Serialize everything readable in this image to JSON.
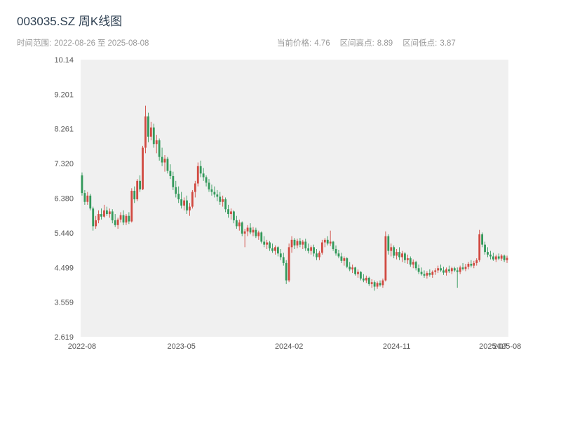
{
  "header": {
    "title": "003035.SZ 周K线图"
  },
  "time_range": {
    "label": "时间范围:",
    "start": "2022-08-26",
    "to": "至",
    "end": "2025-08-08"
  },
  "stats": [
    {
      "label": "当前价格:",
      "value": "4.76"
    },
    {
      "label": "区间高点:",
      "value": "8.89"
    },
    {
      "label": "区间低点:",
      "value": "3.87"
    }
  ],
  "chart_data": {
    "type": "candlestick",
    "title": "003035.SZ 周K线图",
    "interval": "weekly",
    "x_start": "2022-08-26",
    "x_end": "2025-08-08",
    "xlabel": "",
    "ylabel": "",
    "grid": false,
    "legend": "none",
    "plot_bg": "#f0f0f0",
    "up_color": "#d14a41",
    "down_color": "#33995b",
    "current_price": 4.76,
    "range_high": 8.89,
    "range_low": 3.87,
    "ylim": [
      2.619,
      10.14
    ],
    "y_ticks": [
      {
        "v": 2.619,
        "label": "2.619"
      },
      {
        "v": 3.559,
        "label": "3.559"
      },
      {
        "v": 4.499,
        "label": "4.499"
      },
      {
        "v": 5.44,
        "label": "5.440"
      },
      {
        "v": 6.38,
        "label": "6.380"
      },
      {
        "v": 7.32,
        "label": "7.320"
      },
      {
        "v": 8.261,
        "label": "8.261"
      },
      {
        "v": 9.201,
        "label": "9.201"
      },
      {
        "v": 10.14,
        "label": "10.14"
      }
    ],
    "x_ticks": [
      {
        "label": "2022-08",
        "index": 0
      },
      {
        "label": "2023-05",
        "index": 36
      },
      {
        "label": "2024-02",
        "index": 75
      },
      {
        "label": "2024-11",
        "index": 114
      },
      {
        "label": "2025-07",
        "index": 149
      },
      {
        "label": "2025-08",
        "index": 154
      }
    ],
    "candles": [
      [
        7.0,
        7.08,
        6.45,
        6.52
      ],
      [
        6.52,
        6.6,
        6.2,
        6.28
      ],
      [
        6.28,
        6.55,
        6.2,
        6.45
      ],
      [
        6.45,
        6.5,
        6.05,
        6.1
      ],
      [
        6.1,
        6.15,
        5.5,
        5.62
      ],
      [
        5.62,
        5.9,
        5.55,
        5.78
      ],
      [
        5.78,
        6.05,
        5.7,
        5.95
      ],
      [
        5.95,
        6.1,
        5.8,
        5.88
      ],
      [
        5.88,
        6.2,
        5.85,
        6.05
      ],
      [
        6.05,
        6.15,
        5.9,
        5.95
      ],
      [
        5.95,
        6.1,
        5.85,
        6.02
      ],
      [
        6.02,
        6.08,
        5.7,
        5.78
      ],
      [
        5.78,
        5.95,
        5.6,
        5.65
      ],
      [
        5.65,
        5.85,
        5.55,
        5.8
      ],
      [
        5.8,
        6.0,
        5.72,
        5.92
      ],
      [
        5.92,
        6.05,
        5.65,
        5.72
      ],
      [
        5.72,
        5.95,
        5.65,
        5.9
      ],
      [
        5.9,
        6.0,
        5.68,
        5.75
      ],
      [
        5.75,
        6.65,
        5.72,
        6.58
      ],
      [
        6.58,
        6.7,
        6.25,
        6.35
      ],
      [
        6.35,
        6.9,
        6.3,
        6.85
      ],
      [
        6.85,
        7.0,
        6.55,
        6.62
      ],
      [
        6.62,
        7.8,
        6.6,
        7.75
      ],
      [
        7.75,
        8.89,
        7.6,
        8.6
      ],
      [
        8.6,
        8.7,
        7.9,
        8.05
      ],
      [
        8.05,
        8.45,
        7.95,
        8.3
      ],
      [
        8.3,
        8.4,
        7.75,
        7.85
      ],
      [
        7.85,
        8.1,
        7.6,
        7.95
      ],
      [
        7.95,
        8.0,
        7.4,
        7.5
      ],
      [
        7.5,
        7.75,
        7.25,
        7.35
      ],
      [
        7.35,
        7.55,
        7.1,
        7.45
      ],
      [
        7.45,
        7.5,
        7.05,
        7.12
      ],
      [
        7.12,
        7.3,
        6.9,
        6.98
      ],
      [
        6.98,
        7.1,
        6.6,
        6.68
      ],
      [
        6.68,
        6.85,
        6.4,
        6.5
      ],
      [
        6.5,
        6.7,
        6.25,
        6.35
      ],
      [
        6.35,
        6.55,
        6.1,
        6.18
      ],
      [
        6.18,
        6.4,
        6.05,
        6.32
      ],
      [
        6.32,
        6.45,
        5.95,
        6.05
      ],
      [
        6.05,
        6.25,
        5.9,
        6.15
      ],
      [
        6.15,
        6.6,
        6.1,
        6.55
      ],
      [
        6.55,
        6.85,
        6.4,
        6.78
      ],
      [
        6.78,
        7.35,
        6.7,
        7.25
      ],
      [
        7.25,
        7.4,
        6.95,
        7.05
      ],
      [
        7.05,
        7.2,
        6.85,
        6.95
      ],
      [
        6.95,
        7.0,
        6.7,
        6.8
      ],
      [
        6.8,
        6.9,
        6.55,
        6.62
      ],
      [
        6.62,
        6.75,
        6.45,
        6.55
      ],
      [
        6.55,
        6.7,
        6.4,
        6.48
      ],
      [
        6.48,
        6.6,
        6.3,
        6.42
      ],
      [
        6.42,
        6.55,
        6.2,
        6.28
      ],
      [
        6.28,
        6.45,
        6.15,
        6.35
      ],
      [
        6.35,
        6.4,
        6.0,
        6.08
      ],
      [
        6.08,
        6.2,
        5.85,
        5.95
      ],
      [
        5.95,
        6.1,
        5.8,
        6.02
      ],
      [
        6.02,
        6.05,
        5.7,
        5.78
      ],
      [
        5.78,
        5.9,
        5.55,
        5.62
      ],
      [
        5.62,
        5.8,
        5.5,
        5.72
      ],
      [
        5.72,
        5.75,
        5.35,
        5.42
      ],
      [
        5.42,
        5.55,
        5.05,
        5.48
      ],
      [
        5.48,
        5.65,
        5.35,
        5.58
      ],
      [
        5.58,
        5.7,
        5.4,
        5.45
      ],
      [
        5.45,
        5.6,
        5.35,
        5.52
      ],
      [
        5.52,
        5.58,
        5.3,
        5.35
      ],
      [
        5.35,
        5.5,
        5.25,
        5.45
      ],
      [
        5.45,
        5.48,
        5.15,
        5.2
      ],
      [
        5.2,
        5.35,
        5.05,
        5.12
      ],
      [
        5.12,
        5.25,
        5.0,
        5.18
      ],
      [
        5.18,
        5.22,
        4.95,
        5.02
      ],
      [
        5.02,
        5.15,
        4.9,
        4.95
      ],
      [
        4.95,
        5.1,
        4.85,
        5.05
      ],
      [
        5.05,
        5.08,
        4.8,
        4.88
      ],
      [
        4.88,
        5.0,
        4.7,
        4.78
      ],
      [
        4.78,
        4.9,
        4.55,
        4.62
      ],
      [
        4.62,
        4.7,
        4.05,
        4.15
      ],
      [
        4.15,
        5.15,
        4.1,
        5.05
      ],
      [
        5.05,
        5.35,
        4.9,
        5.25
      ],
      [
        5.25,
        5.3,
        5.0,
        5.1
      ],
      [
        5.1,
        5.28,
        5.02,
        5.22
      ],
      [
        5.22,
        5.3,
        5.05,
        5.12
      ],
      [
        5.12,
        5.25,
        5.0,
        5.2
      ],
      [
        5.2,
        5.28,
        4.95,
        5.02
      ],
      [
        5.02,
        5.15,
        4.88,
        4.95
      ],
      [
        4.95,
        5.1,
        4.85,
        5.05
      ],
      [
        5.05,
        5.12,
        4.8,
        4.88
      ],
      [
        4.88,
        5.0,
        4.7,
        4.78
      ],
      [
        4.78,
        4.95,
        4.7,
        4.9
      ],
      [
        4.9,
        5.25,
        4.85,
        5.18
      ],
      [
        5.18,
        5.3,
        5.05,
        5.25
      ],
      [
        5.25,
        5.35,
        5.1,
        5.15
      ],
      [
        5.15,
        5.5,
        5.08,
        5.2
      ],
      [
        5.2,
        5.22,
        4.95,
        5.0
      ],
      [
        5.0,
        5.1,
        4.82,
        4.88
      ],
      [
        4.88,
        4.98,
        4.75,
        4.8
      ],
      [
        4.8,
        4.9,
        4.62,
        4.68
      ],
      [
        4.68,
        4.8,
        4.55,
        4.75
      ],
      [
        4.75,
        4.78,
        4.48,
        4.52
      ],
      [
        4.52,
        4.65,
        4.4,
        4.45
      ],
      [
        4.45,
        4.58,
        4.35,
        4.5
      ],
      [
        4.5,
        4.52,
        4.28,
        4.32
      ],
      [
        4.32,
        4.45,
        4.22,
        4.38
      ],
      [
        4.38,
        4.4,
        4.15,
        4.2
      ],
      [
        4.2,
        4.32,
        4.1,
        4.15
      ],
      [
        4.15,
        4.28,
        4.08,
        4.22
      ],
      [
        4.22,
        4.25,
        4.0,
        4.05
      ],
      [
        4.05,
        4.18,
        3.95,
        4.1
      ],
      [
        4.1,
        4.15,
        3.87,
        3.98
      ],
      [
        3.98,
        4.12,
        3.92,
        4.08
      ],
      [
        4.08,
        4.15,
        3.98,
        4.02
      ],
      [
        4.02,
        4.2,
        3.95,
        4.15
      ],
      [
        4.15,
        5.48,
        4.12,
        5.35
      ],
      [
        5.35,
        5.4,
        4.85,
        4.95
      ],
      [
        4.95,
        5.15,
        4.8,
        5.05
      ],
      [
        5.05,
        5.1,
        4.75,
        4.82
      ],
      [
        4.82,
        5.0,
        4.72,
        4.92
      ],
      [
        4.92,
        5.05,
        4.7,
        4.78
      ],
      [
        4.78,
        4.95,
        4.65,
        4.88
      ],
      [
        4.88,
        4.92,
        4.62,
        4.7
      ],
      [
        4.7,
        4.85,
        4.6,
        4.75
      ],
      [
        4.75,
        4.8,
        4.52,
        4.58
      ],
      [
        4.58,
        4.72,
        4.48,
        4.65
      ],
      [
        4.65,
        4.68,
        4.42,
        4.48
      ],
      [
        4.48,
        4.58,
        4.32,
        4.38
      ],
      [
        4.38,
        4.5,
        4.28,
        4.32
      ],
      [
        4.32,
        4.42,
        4.22,
        4.28
      ],
      [
        4.28,
        4.4,
        4.2,
        4.35
      ],
      [
        4.35,
        4.45,
        4.25,
        4.3
      ],
      [
        4.3,
        4.42,
        4.22,
        4.38
      ],
      [
        4.38,
        4.48,
        4.3,
        4.42
      ],
      [
        4.42,
        4.55,
        4.35,
        4.48
      ],
      [
        4.48,
        4.58,
        4.38,
        4.42
      ],
      [
        4.42,
        4.52,
        4.3,
        4.36
      ],
      [
        4.36,
        4.5,
        4.28,
        4.45
      ],
      [
        4.45,
        4.55,
        4.35,
        4.4
      ],
      [
        4.4,
        4.52,
        4.32,
        4.48
      ],
      [
        4.48,
        4.52,
        4.38,
        4.42
      ],
      [
        4.42,
        4.5,
        3.95,
        4.38
      ],
      [
        4.38,
        4.55,
        4.32,
        4.5
      ],
      [
        4.5,
        4.62,
        4.42,
        4.46
      ],
      [
        4.46,
        4.6,
        4.4,
        4.52
      ],
      [
        4.52,
        4.65,
        4.45,
        4.6
      ],
      [
        4.6,
        4.7,
        4.5,
        4.55
      ],
      [
        4.55,
        4.68,
        4.48,
        4.62
      ],
      [
        4.62,
        4.75,
        4.55,
        4.7
      ],
      [
        4.7,
        5.52,
        4.65,
        5.4
      ],
      [
        5.4,
        5.45,
        5.05,
        5.12
      ],
      [
        5.12,
        5.2,
        4.85,
        4.92
      ],
      [
        4.92,
        5.05,
        4.78,
        4.85
      ],
      [
        4.85,
        4.95,
        4.72,
        4.8
      ],
      [
        4.8,
        4.9,
        4.68,
        4.72
      ],
      [
        4.72,
        4.85,
        4.65,
        4.8
      ],
      [
        4.8,
        4.88,
        4.7,
        4.74
      ],
      [
        4.74,
        4.86,
        4.68,
        4.82
      ],
      [
        4.82,
        4.85,
        4.65,
        4.7
      ],
      [
        4.7,
        4.82,
        4.62,
        4.76
      ]
    ]
  }
}
